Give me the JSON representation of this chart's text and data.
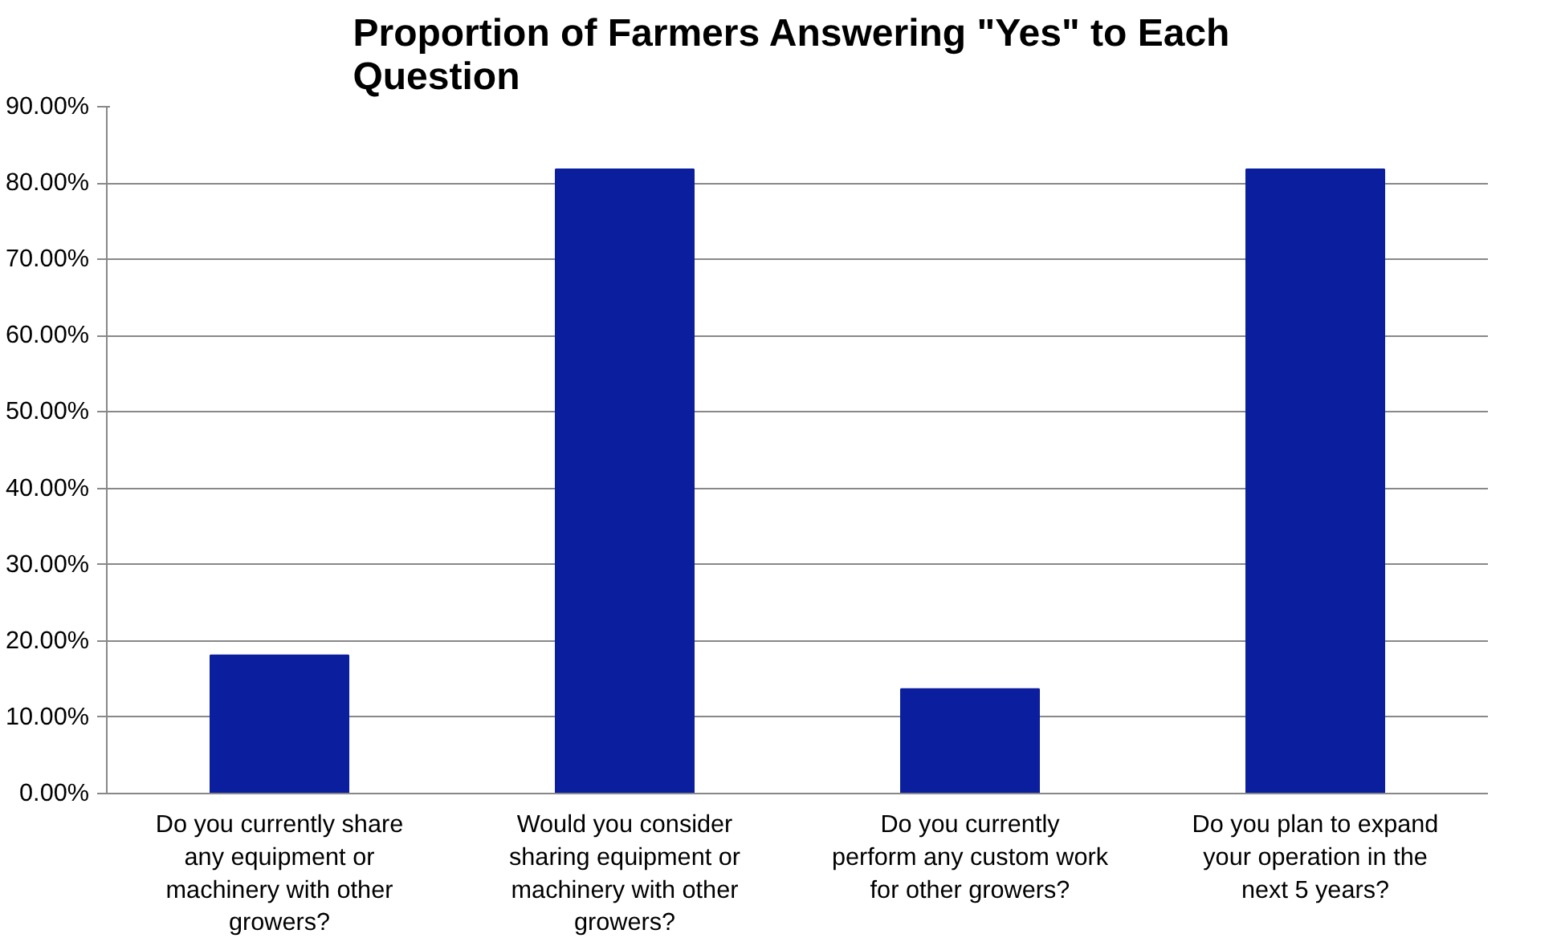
{
  "chart_data": {
    "type": "bar",
    "title": "Proportion of Farmers Answering \"Yes\" to Each Question",
    "categories": [
      "Do you currently share any equipment or machinery with other growers?",
      "Would you consider sharing equipment or machinery with other growers?",
      "Do you currently perform any custom work for other growers?",
      "Do you plan to expand your operation in the next 5 years?"
    ],
    "values": [
      18.1,
      81.8,
      13.7,
      81.8
    ],
    "color": "#0a1e9e",
    "ylim": [
      0,
      90
    ],
    "yticks": [
      {
        "value": 0,
        "label": "0.00%"
      },
      {
        "value": 10,
        "label": "10.00%"
      },
      {
        "value": 20,
        "label": "20.00%"
      },
      {
        "value": 30,
        "label": "30.00%"
      },
      {
        "value": 40,
        "label": "40.00%"
      },
      {
        "value": 50,
        "label": "50.00%"
      },
      {
        "value": 60,
        "label": "60.00%"
      },
      {
        "value": 70,
        "label": "70.00%"
      },
      {
        "value": 80,
        "label": "80.00%"
      },
      {
        "value": 90,
        "label": "90.00%"
      }
    ],
    "grid": "y"
  }
}
